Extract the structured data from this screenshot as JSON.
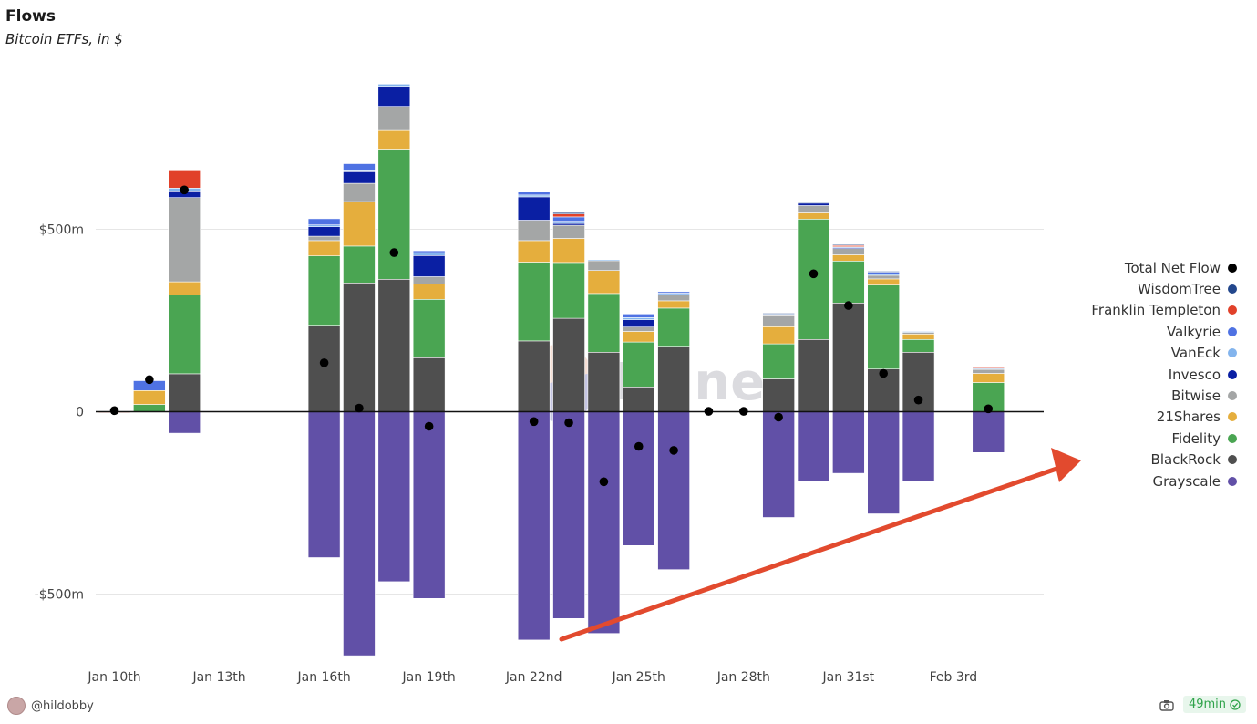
{
  "header": {
    "title": "Flows",
    "subtitle": "Bitcoin ETFs, in $"
  },
  "footer": {
    "author": "@hildobby",
    "freshness": "49min"
  },
  "watermark": {
    "text": "Dune"
  },
  "colors": {
    "Grayscale": "#6150a7",
    "BlackRock": "#4f4f4f",
    "Fidelity": "#4aa552",
    "21Shares": "#e5ae3d",
    "Bitwise": "#a4a6a6",
    "Invesco": "#0a1fa3",
    "VanEck": "#83b4ed",
    "Valkyrie": "#4f72e3",
    "Franklin Templeton": "#e1412a",
    "WisdomTree": "#23478c",
    "Total Net Flow": "#000000",
    "arrow": "#e24a2e"
  },
  "chart_data": {
    "type": "bar",
    "stacked": true,
    "title": "Flows",
    "subtitle": "Bitcoin ETFs, in $",
    "units": "USD millions",
    "x_ticks": [
      "Jan 10th",
      "Jan 13th",
      "Jan 16th",
      "Jan 19th",
      "Jan 22nd",
      "Jan 25th",
      "Jan 28th",
      "Jan 31st",
      "Feb 3rd"
    ],
    "y_ticks": [
      {
        "value": 500,
        "label": "$500m"
      },
      {
        "value": 0,
        "label": "0"
      },
      {
        "value": -500,
        "label": "-$500m"
      }
    ],
    "ylim": [
      -650,
      900
    ],
    "categories": [
      "Jan 10",
      "Jan 11",
      "Jan 12",
      "Jan 13",
      "Jan 14",
      "Jan 15",
      "Jan 16",
      "Jan 17",
      "Jan 18",
      "Jan 19",
      "Jan 20",
      "Jan 21",
      "Jan 22",
      "Jan 23",
      "Jan 24",
      "Jan 25",
      "Jan 26",
      "Jan 27",
      "Jan 28",
      "Jan 29",
      "Jan 30",
      "Jan 31",
      "Feb 1",
      "Feb 2",
      "Feb 3",
      "Feb 4"
    ],
    "series": [
      {
        "name": "Grayscale",
        "values": [
          0,
          0,
          -59,
          0,
          0,
          0,
          -400,
          -669,
          -466,
          -512,
          0,
          0,
          -626,
          -567,
          -608,
          -367,
          -433,
          0,
          0,
          -290,
          -192,
          -169,
          -280,
          -190,
          0,
          -112
        ]
      },
      {
        "name": "BlackRock",
        "values": [
          0,
          0,
          104,
          0,
          0,
          0,
          237,
          353,
          363,
          148,
          0,
          0,
          194,
          256,
          163,
          68,
          177,
          0,
          0,
          90,
          198,
          298,
          117,
          163,
          0,
          0
        ]
      },
      {
        "name": "Fidelity",
        "values": [
          0,
          20,
          216,
          0,
          0,
          0,
          190,
          101,
          357,
          160,
          0,
          0,
          216,
          153,
          161,
          123,
          107,
          0,
          0,
          96,
          330,
          115,
          230,
          35,
          0,
          80
        ]
      },
      {
        "name": "21Shares",
        "values": [
          0,
          38,
          36,
          0,
          0,
          0,
          42,
          122,
          51,
          42,
          0,
          0,
          59,
          66,
          63,
          29,
          20,
          0,
          0,
          47,
          17,
          17,
          17,
          15,
          0,
          25
        ]
      },
      {
        "name": "Bitwise",
        "values": [
          0,
          0,
          231,
          0,
          0,
          0,
          12,
          50,
          66,
          20,
          0,
          0,
          56,
          36,
          27,
          12,
          17,
          0,
          0,
          30,
          20,
          17,
          10,
          5,
          0,
          11
        ]
      },
      {
        "name": "Invesco",
        "values": [
          0,
          0,
          16,
          0,
          0,
          0,
          26,
          32,
          55,
          58,
          0,
          0,
          64,
          5,
          0,
          20,
          0,
          0,
          0,
          0,
          7,
          3,
          0,
          0,
          0,
          0
        ]
      },
      {
        "name": "VanEck",
        "values": [
          0,
          0,
          10,
          0,
          0,
          0,
          5,
          5,
          6,
          8,
          0,
          0,
          5,
          6,
          3,
          6,
          4,
          0,
          0,
          5,
          2,
          2,
          3,
          2,
          0,
          3
        ]
      },
      {
        "name": "Valkyrie",
        "values": [
          0,
          27,
          0,
          0,
          0,
          0,
          17,
          17,
          0,
          5,
          0,
          0,
          8,
          12,
          0,
          10,
          4,
          0,
          0,
          0,
          0,
          0,
          6,
          0,
          0,
          0
        ]
      },
      {
        "name": "Franklin Templeton",
        "values": [
          -2,
          0,
          50,
          0,
          0,
          0,
          0,
          0,
          0,
          0,
          0,
          0,
          0,
          8,
          0,
          0,
          0,
          0,
          0,
          0,
          0,
          4,
          0,
          0,
          0,
          2
        ]
      },
      {
        "name": "WisdomTree",
        "values": [
          0,
          0,
          0,
          0,
          0,
          0,
          0,
          0,
          0,
          0,
          0,
          0,
          0,
          4,
          0,
          0,
          0,
          0,
          0,
          2,
          1,
          2,
          2,
          0,
          0,
          0
        ]
      }
    ],
    "line_series": {
      "name": "Total Net Flow",
      "values": [
        3,
        88,
        608,
        null,
        null,
        null,
        134,
        10,
        436,
        -40,
        null,
        null,
        -27,
        -30,
        -192,
        -95,
        -106,
        1,
        1,
        -15,
        378,
        291,
        105,
        32,
        null,
        8
      ]
    },
    "legend": [
      "Total Net Flow",
      "WisdomTree",
      "Franklin Templeton",
      "Valkyrie",
      "VanEck",
      "Invesco",
      "Bitwise",
      "21Shares",
      "Fidelity",
      "BlackRock",
      "Grayscale"
    ],
    "legend_position": "right"
  }
}
